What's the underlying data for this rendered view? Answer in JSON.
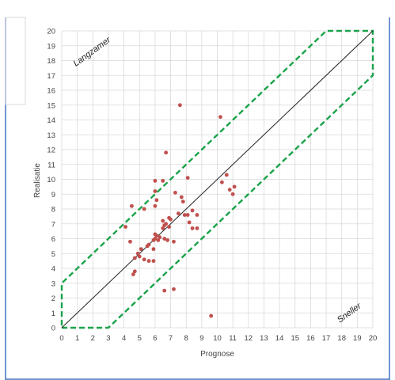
{
  "chart_data": {
    "type": "scatter",
    "title": "",
    "xlabel": "Prognose",
    "ylabel": "Realisatie",
    "xlim": [
      0,
      20
    ],
    "ylim": [
      0,
      20
    ],
    "xticks": [
      "0",
      "1",
      "2",
      "3",
      "4",
      "5",
      "6",
      "7",
      "8",
      "9",
      "10",
      "11",
      "12",
      "13",
      "14",
      "15",
      "16",
      "17",
      "18",
      "19",
      "20"
    ],
    "yticks": [
      "0",
      "1",
      "2",
      "3",
      "4",
      "5",
      "6",
      "7",
      "8",
      "9",
      "10",
      "11",
      "12",
      "13",
      "14",
      "15",
      "16",
      "17",
      "18",
      "19",
      "20"
    ],
    "grid": true,
    "annotations": {
      "upper_left": "Langzamer",
      "lower_right": "Sneller"
    },
    "colors": {
      "points": "#c0504d",
      "diagonal": "#222222",
      "band": "#1aa34a",
      "grid": "#d9d9d9",
      "frame": "#4472c4"
    },
    "reference_line": [
      [
        0,
        0
      ],
      [
        20,
        20
      ]
    ],
    "band_polygon": [
      [
        0,
        0
      ],
      [
        3,
        0
      ],
      [
        20,
        17
      ],
      [
        20,
        20
      ],
      [
        17,
        20
      ],
      [
        0,
        3
      ]
    ],
    "series": [
      {
        "points": [
          [
            7.6,
            15.0
          ],
          [
            10.2,
            14.2
          ],
          [
            6.7,
            11.8
          ],
          [
            8.1,
            10.1
          ],
          [
            10.6,
            10.3
          ],
          [
            6.0,
            9.9
          ],
          [
            6.5,
            9.9
          ],
          [
            10.3,
            9.8
          ],
          [
            11.1,
            9.5
          ],
          [
            10.8,
            9.3
          ],
          [
            6.0,
            9.2
          ],
          [
            7.3,
            9.1
          ],
          [
            11.0,
            9.0
          ],
          [
            7.7,
            8.8
          ],
          [
            6.1,
            8.6
          ],
          [
            7.8,
            8.5
          ],
          [
            6.0,
            8.2
          ],
          [
            4.5,
            8.2
          ],
          [
            5.3,
            8.0
          ],
          [
            8.4,
            7.9
          ],
          [
            7.5,
            7.7
          ],
          [
            7.9,
            7.6
          ],
          [
            8.1,
            7.6
          ],
          [
            8.7,
            7.6
          ],
          [
            6.9,
            7.4
          ],
          [
            7.0,
            7.3
          ],
          [
            6.5,
            7.2
          ],
          [
            8.2,
            7.1
          ],
          [
            6.7,
            7.0
          ],
          [
            6.6,
            6.9
          ],
          [
            6.9,
            6.8
          ],
          [
            4.1,
            6.8
          ],
          [
            6.5,
            6.7
          ],
          [
            8.4,
            6.7
          ],
          [
            8.7,
            6.7
          ],
          [
            6.0,
            6.3
          ],
          [
            6.1,
            6.2
          ],
          [
            6.3,
            6.1
          ],
          [
            6.0,
            6.0
          ],
          [
            6.6,
            6.0
          ],
          [
            5.9,
            5.9
          ],
          [
            6.2,
            5.9
          ],
          [
            6.8,
            5.9
          ],
          [
            4.4,
            5.8
          ],
          [
            7.2,
            5.8
          ],
          [
            5.6,
            5.6
          ],
          [
            5.5,
            5.5
          ],
          [
            5.1,
            5.3
          ],
          [
            5.9,
            5.3
          ],
          [
            4.9,
            5.0
          ],
          [
            5.0,
            4.8
          ],
          [
            4.7,
            4.7
          ],
          [
            5.3,
            4.6
          ],
          [
            5.6,
            4.5
          ],
          [
            5.9,
            4.5
          ],
          [
            4.7,
            3.8
          ],
          [
            4.6,
            3.6
          ],
          [
            6.6,
            2.5
          ],
          [
            7.2,
            2.6
          ],
          [
            9.6,
            0.8
          ]
        ]
      }
    ]
  }
}
